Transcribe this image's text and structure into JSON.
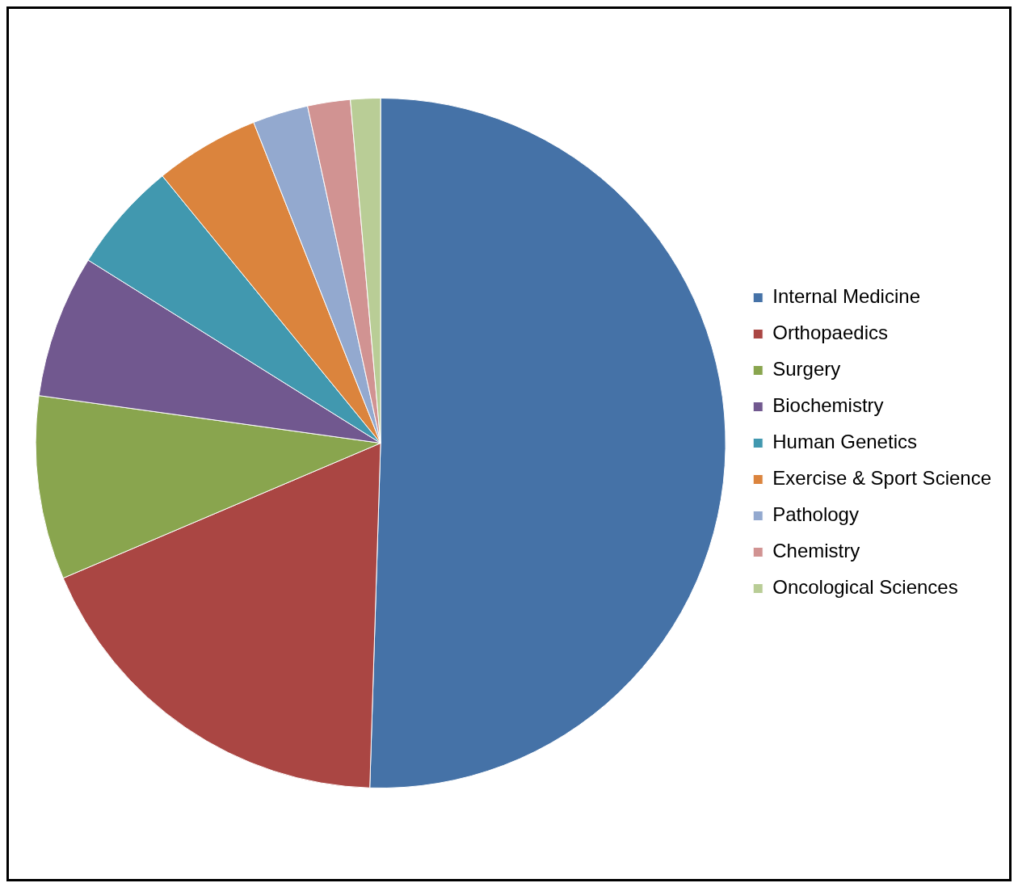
{
  "chart_data": {
    "type": "pie",
    "categories": [
      "Internal Medicine",
      "Orthopaedics",
      "Surgery",
      "Biochemistry",
      "Human Genetics",
      "Exercise & Sport Science",
      "Pathology",
      "Chemistry",
      "Oncological Sciences"
    ],
    "values": [
      50.5,
      18.1,
      8.6,
      6.7,
      5.2,
      4.9,
      2.6,
      2.0,
      1.4
    ],
    "colors": [
      "#4572a7",
      "#aa4643",
      "#89a54e",
      "#71588f",
      "#4198af",
      "#db843d",
      "#93a9cf",
      "#d19392",
      "#b9cd96"
    ],
    "legend": "right"
  }
}
